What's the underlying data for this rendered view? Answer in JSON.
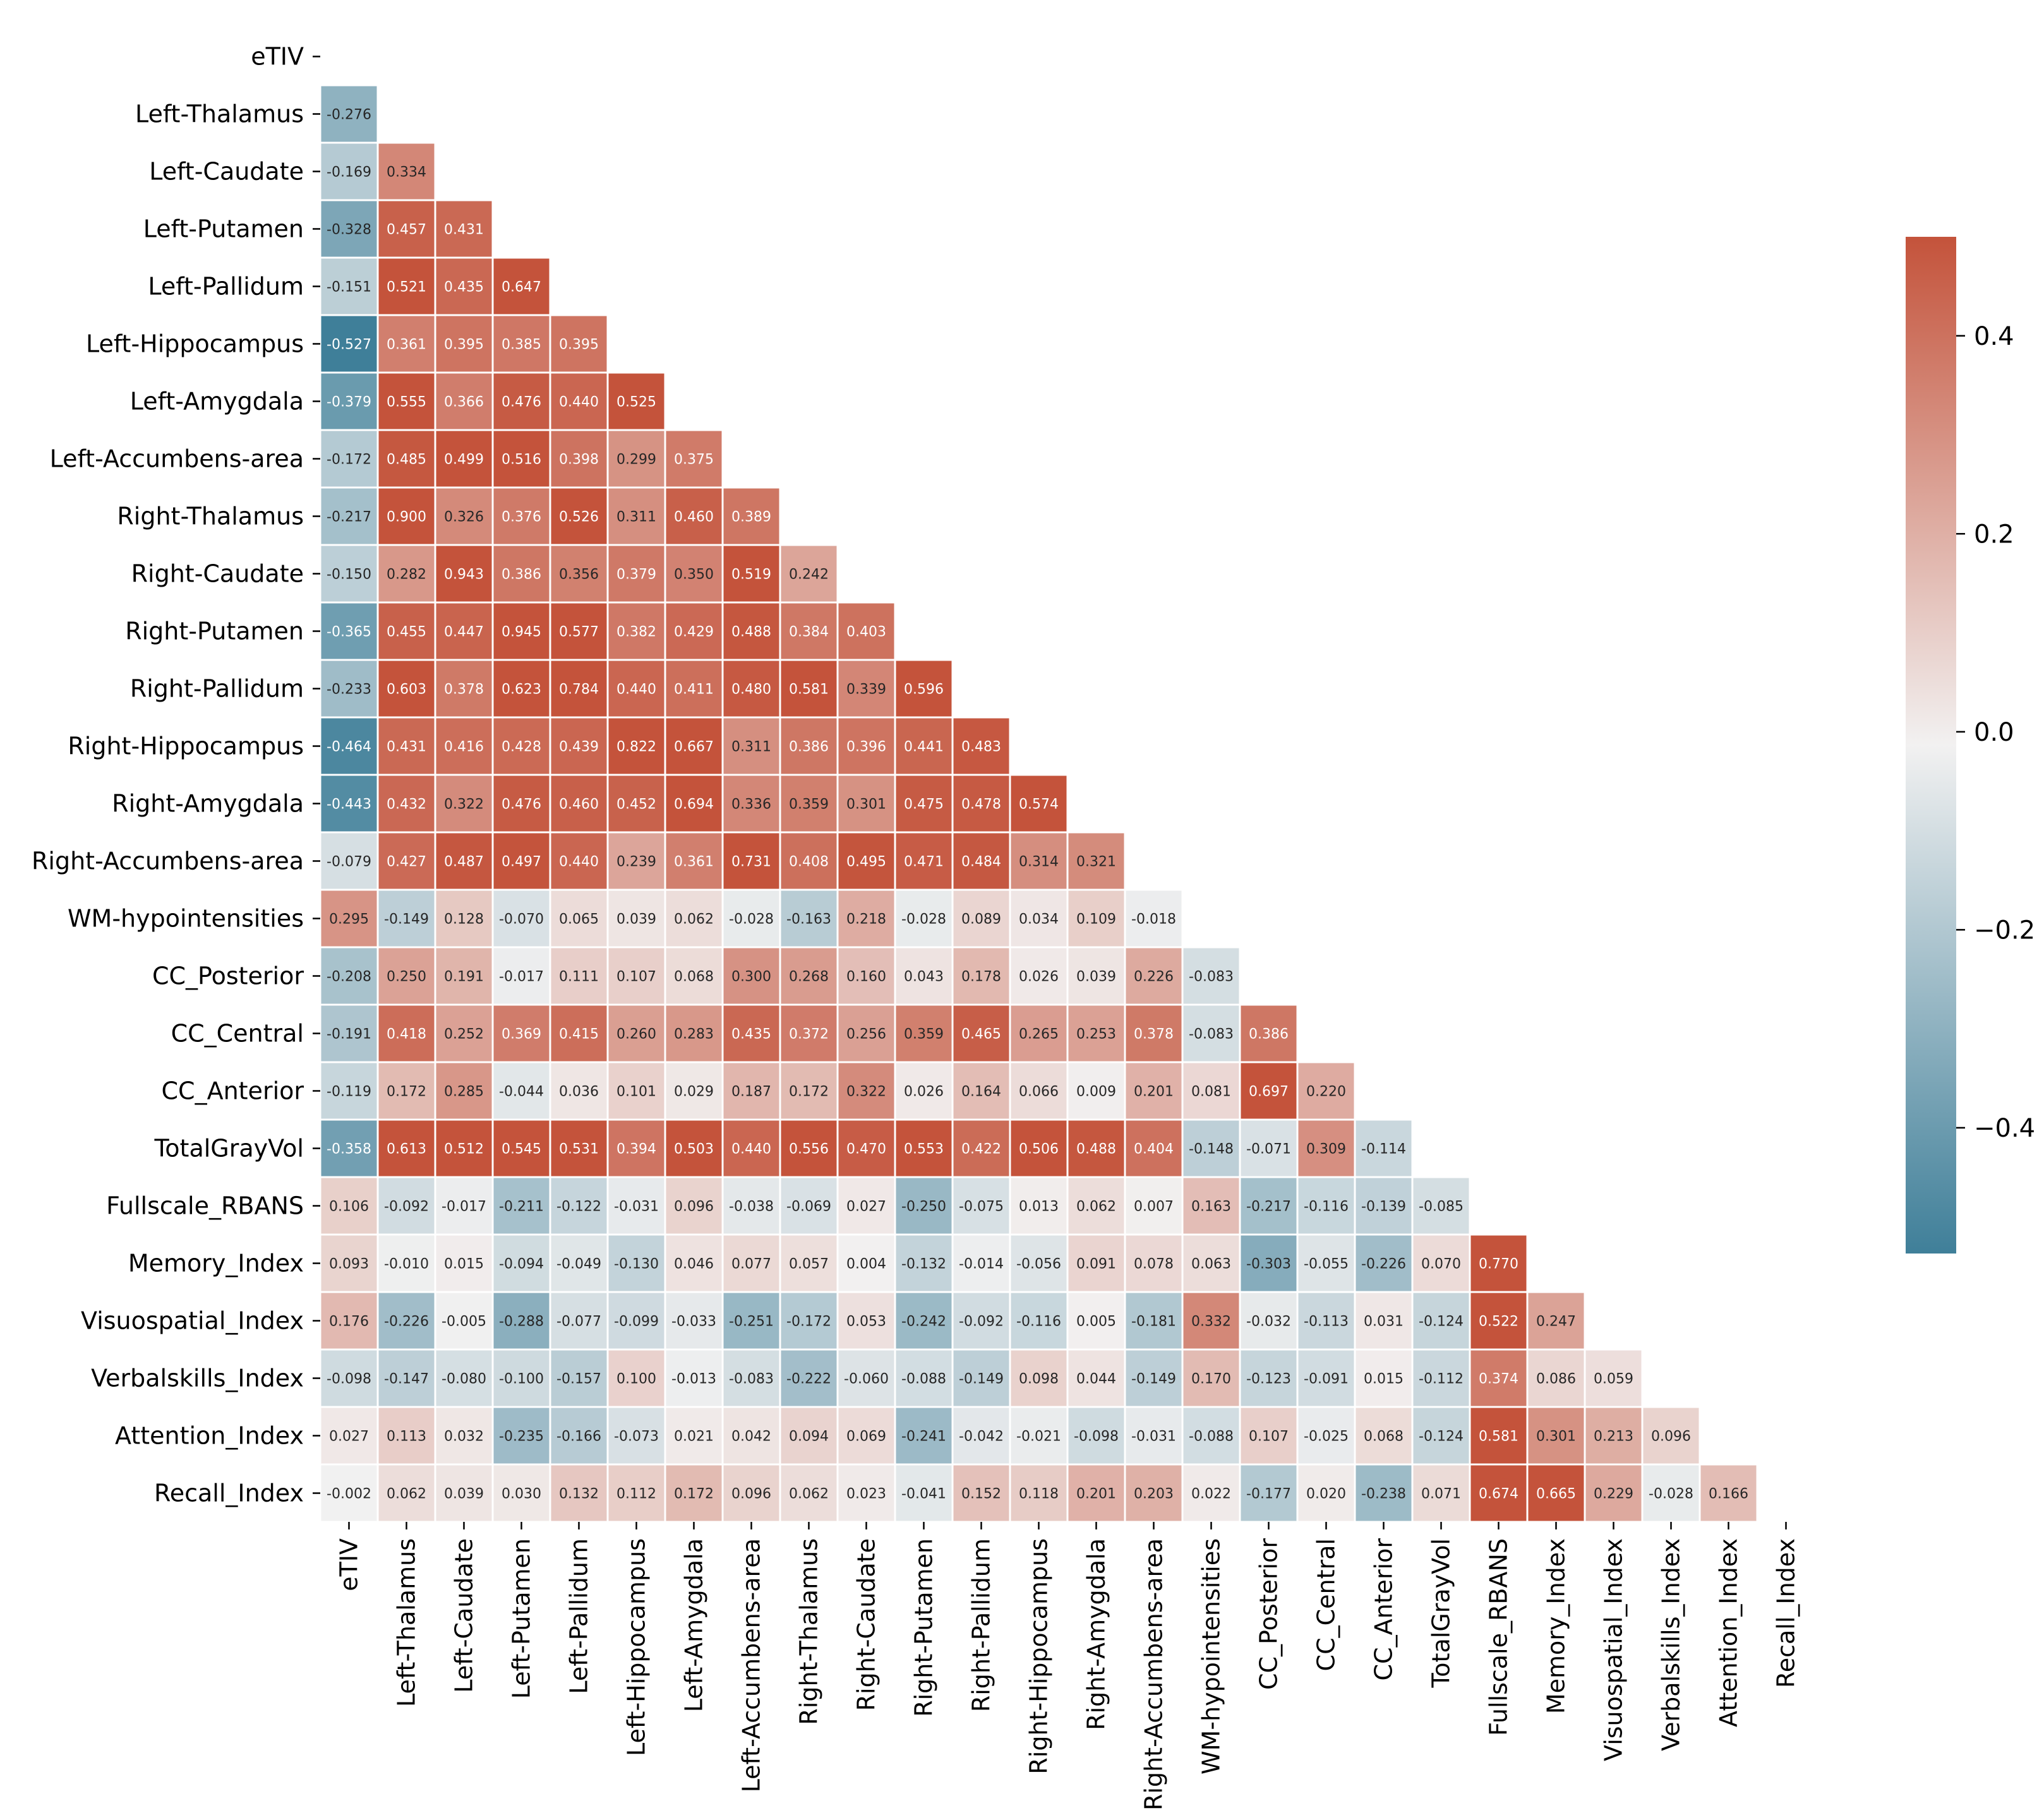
{
  "chart_data": {
    "type": "heatmap",
    "title": "",
    "xlabel": "",
    "ylabel": "",
    "mask": "upper-triangle-including-diagonal",
    "variables": [
      "eTIV",
      "Left-Thalamus",
      "Left-Caudate",
      "Left-Putamen",
      "Left-Pallidum",
      "Left-Hippocampus",
      "Left-Amygdala",
      "Left-Accumbens-area",
      "Right-Thalamus",
      "Right-Caudate",
      "Right-Putamen",
      "Right-Pallidum",
      "Right-Hippocampus",
      "Right-Amygdala",
      "Right-Accumbens-area",
      "WM-hypointensities",
      "CC_Posterior",
      "CC_Central",
      "CC_Anterior",
      "TotalGrayVol",
      "Fullscale_RBANS",
      "Memory_Index",
      "Visuospatial_Index",
      "Verbalskills_Index",
      "Attention_Index",
      "Recall_Index"
    ],
    "lower_triangle": [
      [],
      [
        -0.276
      ],
      [
        -0.169,
        0.334
      ],
      [
        -0.328,
        0.457,
        0.431
      ],
      [
        -0.151,
        0.521,
        0.435,
        0.647
      ],
      [
        -0.527,
        0.361,
        0.395,
        0.385,
        0.395
      ],
      [
        -0.379,
        0.555,
        0.366,
        0.476,
        0.44,
        0.525
      ],
      [
        -0.172,
        0.485,
        0.499,
        0.516,
        0.398,
        0.299,
        0.375
      ],
      [
        -0.217,
        0.9,
        0.326,
        0.376,
        0.526,
        0.311,
        0.46,
        0.389
      ],
      [
        -0.15,
        0.282,
        0.943,
        0.386,
        0.356,
        0.379,
        0.35,
        0.519,
        0.242
      ],
      [
        -0.365,
        0.455,
        0.447,
        0.945,
        0.577,
        0.382,
        0.429,
        0.488,
        0.384,
        0.403
      ],
      [
        -0.233,
        0.603,
        0.378,
        0.623,
        0.784,
        0.44,
        0.411,
        0.48,
        0.581,
        0.339,
        0.596
      ],
      [
        -0.464,
        0.431,
        0.416,
        0.428,
        0.439,
        0.822,
        0.667,
        0.311,
        0.386,
        0.396,
        0.441,
        0.483
      ],
      [
        -0.443,
        0.432,
        0.322,
        0.476,
        0.46,
        0.452,
        0.694,
        0.336,
        0.359,
        0.301,
        0.475,
        0.478,
        0.574
      ],
      [
        -0.079,
        0.427,
        0.487,
        0.497,
        0.44,
        0.239,
        0.361,
        0.731,
        0.408,
        0.495,
        0.471,
        0.484,
        0.314,
        0.321
      ],
      [
        0.295,
        -0.149,
        0.128,
        -0.07,
        0.065,
        0.039,
        0.062,
        -0.028,
        -0.163,
        0.218,
        -0.028,
        0.089,
        0.034,
        0.109,
        -0.018
      ],
      [
        -0.208,
        0.25,
        0.191,
        -0.017,
        0.111,
        0.107,
        0.068,
        0.3,
        0.268,
        0.16,
        0.043,
        0.178,
        0.026,
        0.039,
        0.226,
        -0.083
      ],
      [
        -0.191,
        0.418,
        0.252,
        0.369,
        0.415,
        0.26,
        0.283,
        0.435,
        0.372,
        0.256,
        0.359,
        0.465,
        0.265,
        0.253,
        0.378,
        -0.083,
        0.386
      ],
      [
        -0.119,
        0.172,
        0.285,
        -0.044,
        0.036,
        0.101,
        0.029,
        0.187,
        0.172,
        0.322,
        0.026,
        0.164,
        0.066,
        0.009,
        0.201,
        0.081,
        0.697,
        0.22
      ],
      [
        -0.358,
        0.613,
        0.512,
        0.545,
        0.531,
        0.394,
        0.503,
        0.44,
        0.556,
        0.47,
        0.553,
        0.422,
        0.506,
        0.488,
        0.404,
        -0.148,
        -0.071,
        0.309,
        -0.114
      ],
      [
        0.106,
        -0.092,
        -0.017,
        -0.211,
        -0.122,
        -0.031,
        0.096,
        -0.038,
        -0.069,
        0.027,
        -0.25,
        -0.075,
        0.013,
        0.062,
        0.007,
        0.163,
        -0.217,
        -0.116,
        -0.139,
        -0.085
      ],
      [
        0.093,
        -0.01,
        0.015,
        -0.094,
        -0.049,
        -0.13,
        0.046,
        0.077,
        0.057,
        0.004,
        -0.132,
        -0.014,
        -0.056,
        0.091,
        0.078,
        0.063,
        -0.303,
        -0.055,
        -0.226,
        0.07,
        0.77
      ],
      [
        0.176,
        -0.226,
        -0.005,
        -0.288,
        -0.077,
        -0.099,
        -0.033,
        -0.251,
        -0.172,
        0.053,
        -0.242,
        -0.092,
        -0.116,
        0.005,
        -0.181,
        0.332,
        -0.032,
        -0.113,
        0.031,
        -0.124,
        0.522,
        0.247
      ],
      [
        -0.098,
        -0.147,
        -0.08,
        -0.1,
        -0.157,
        0.1,
        -0.013,
        -0.083,
        -0.222,
        -0.06,
        -0.088,
        -0.149,
        0.098,
        0.044,
        -0.149,
        0.17,
        -0.123,
        -0.091,
        0.015,
        -0.112,
        0.374,
        0.086,
        0.059
      ],
      [
        0.027,
        0.113,
        0.032,
        -0.235,
        -0.166,
        -0.073,
        0.021,
        0.042,
        0.094,
        0.069,
        -0.241,
        -0.042,
        -0.021,
        -0.098,
        -0.031,
        -0.088,
        0.107,
        -0.025,
        0.068,
        -0.124,
        0.581,
        0.301,
        0.213,
        0.096
      ],
      [
        -0.002,
        0.062,
        0.039,
        0.03,
        0.132,
        0.112,
        0.172,
        0.096,
        0.062,
        0.023,
        -0.041,
        0.152,
        0.118,
        0.201,
        0.203,
        0.022,
        -0.177,
        0.02,
        -0.238,
        0.071,
        0.674,
        0.665,
        0.229,
        -0.028,
        0.166
      ]
    ],
    "value_format": "3 decimals",
    "colorscale": {
      "name": "diverging blue-white-red",
      "vmin": -0.5,
      "vmax": 0.5,
      "negative_color": "#3f7f99",
      "center_color": "#f2f1f1",
      "positive_color": "#c4533b",
      "ticks": [
        0.4,
        0.2,
        0.0,
        -0.2,
        -0.4
      ],
      "tick_labels": [
        "0.4",
        "0.2",
        "0.0",
        "−0.2",
        "−0.4"
      ]
    },
    "grid": false,
    "legend": "colorbar at right"
  }
}
